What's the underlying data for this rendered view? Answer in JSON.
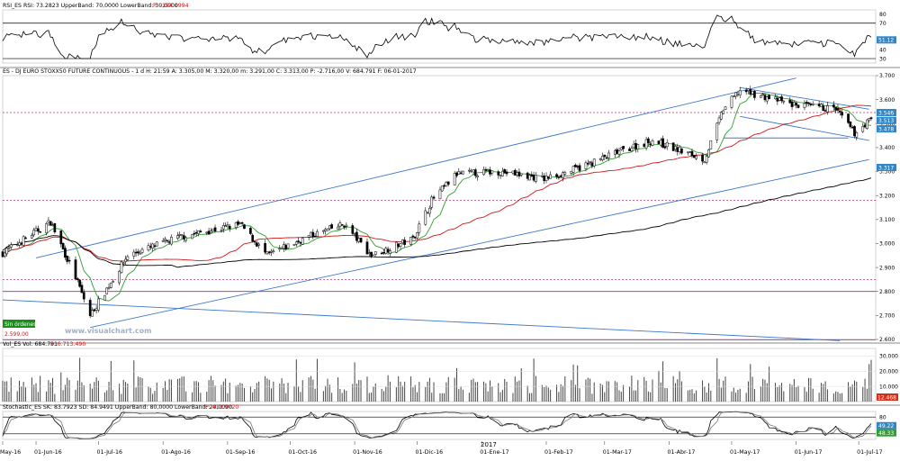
{
  "rsi": {
    "header": "RSI_ES  RSI: 73.2823  UpperBand: 70,0000  LowerBand: 30,0000",
    "extra": "P: -194.1994",
    "ticks": [
      80,
      70,
      40,
      30
    ],
    "current": "51.12"
  },
  "price": {
    "header": "ES - DJ EURO STOXX50 FUTURE CONTINUOUS - 1 d  H: 21:59  A: 3.305,00  M: 3.320,00  m: 3.291,00  C: 3.313,00  P: -2.716,00  V: 684.791  F: 06-01-2017",
    "ticks": [
      "3.700",
      "3.600",
      "3.500",
      "3.400",
      "3.300",
      "3.200",
      "3.100",
      "3.000",
      "2.900",
      "2.800",
      "2.700",
      "2.600"
    ],
    "last_labels": [
      "3.546",
      "3.513",
      "3.478",
      "3.317"
    ],
    "stop_box": "Sin órdenes",
    "stop_value": "2.599,00",
    "watermark": "www.visualchart.com"
  },
  "volume": {
    "header": "Vol_ES  Vol: 684.791",
    "extra": "P: 6.713.490",
    "ticks": [
      "30.000",
      "20.000",
      "10.000"
    ],
    "current": "12.468"
  },
  "stochastic": {
    "header": "Stochastic_ES  SK: 83.7923  SD: 84.9491  UpperBand: 80,0000  LowerBand: 20,0000",
    "extra": "P: 413.9720",
    "ticks": [
      "80",
      "20"
    ],
    "current_a": "49.22",
    "current_b": "48.33"
  },
  "xaxis": {
    "labels": [
      "May-16",
      "01-Jun-16",
      "01-Jul-16",
      "01-Ago-16",
      "01-Sep-16",
      "01-Oct-16",
      "01-Nov-16",
      "01-Dic-16",
      "01-Ene-17",
      "01-Feb-17",
      "01-Mar-17",
      "01-Abr-17",
      "01-May-17",
      "01-Jun-17",
      "01-Jul-17"
    ],
    "year_label": "2017"
  },
  "colors": {
    "up": "#ffffff",
    "down": "#000000",
    "channel": "#3c78c8",
    "sma_fast": "#2fa02f",
    "sma_mid": "#d01818",
    "sma_slow": "#000000",
    "level_dashed": "#c0306a",
    "level_solid": "#9b2a8a",
    "axis_label_bg": "#2f86c8"
  },
  "chart_data": {
    "type": "candlestick",
    "instrument": "DJ EURO STOXX50 FUTURE CONTINUOUS",
    "timeframe": "1 d",
    "ohlc_last": {
      "open": 3305,
      "high": 3320,
      "low": 3291,
      "close": 3313
    },
    "y_range": [
      2600,
      3700
    ],
    "key_price_path": {
      "dates": [
        "2016-05-16",
        "2016-06-08",
        "2016-06-20",
        "2016-06-27",
        "2016-07-15",
        "2016-08-10",
        "2016-09-07",
        "2016-09-20",
        "2016-10-10",
        "2016-10-27",
        "2016-11-09",
        "2016-11-29",
        "2016-12-08",
        "2016-12-20",
        "2017-01-09",
        "2017-01-31",
        "2017-02-15",
        "2017-03-13",
        "2017-03-24",
        "2017-04-18",
        "2017-04-27",
        "2017-05-05",
        "2017-05-30",
        "2017-06-20",
        "2017-06-29",
        "2017-07-06"
      ],
      "closes": [
        2960,
        3090,
        2860,
        2700,
        2950,
        3030,
        3080,
        2950,
        3030,
        3080,
        2950,
        3020,
        3180,
        3290,
        3300,
        3270,
        3310,
        3400,
        3430,
        3350,
        3560,
        3640,
        3580,
        3560,
        3460,
        3513
      ]
    },
    "horizontal_levels": {
      "dashed": [
        3546,
        3180,
        2850
      ],
      "solid": [
        2800,
        2599
      ]
    },
    "moving_averages": [
      "green (fast)",
      "red (medium)",
      "black (slow)"
    ],
    "volume_range": [
      0,
      35000
    ],
    "rsi_range": [
      20,
      80
    ],
    "stochastic_range": [
      0,
      100
    ]
  }
}
